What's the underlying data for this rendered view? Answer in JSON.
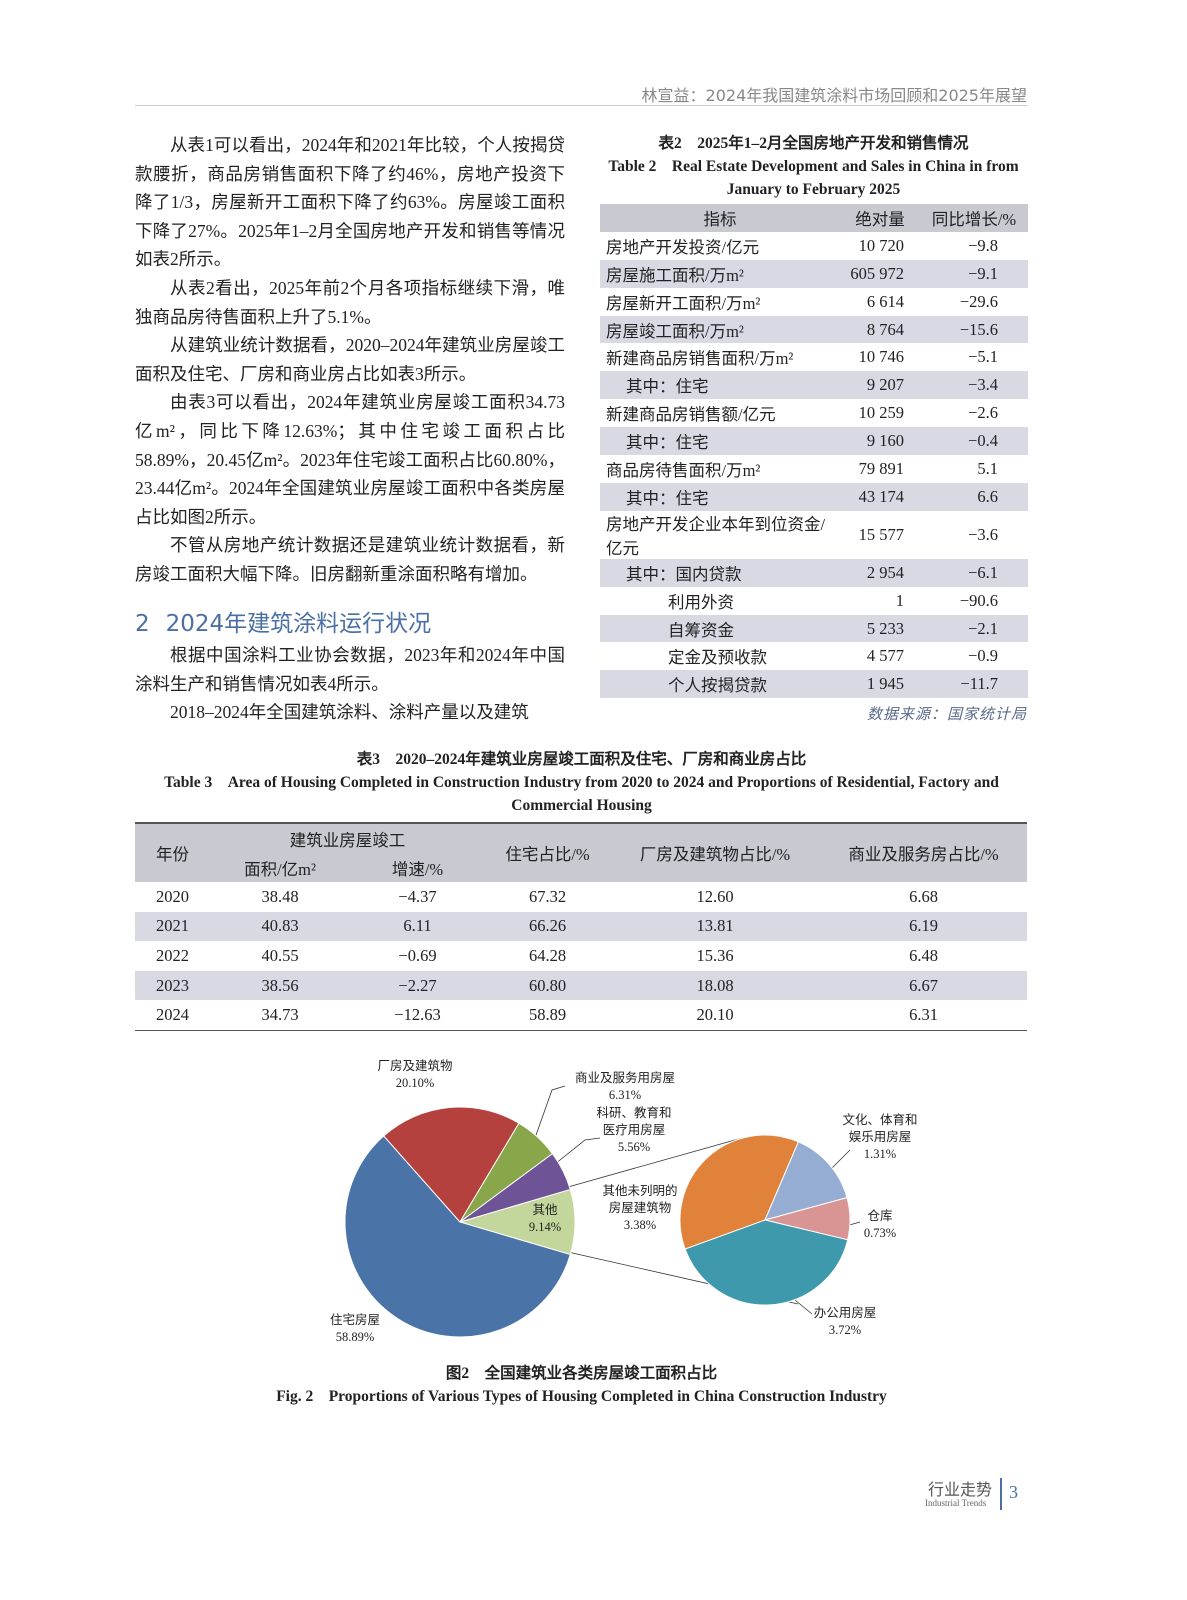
{
  "header": {
    "running_title": "林宣益：2024年我国建筑涂料市场回顾和2025年展望"
  },
  "body": {
    "paragraphs_1": [
      "从表1可以看出，2024年和2021年比较，个人按揭贷款腰折，商品房销售面积下降了约46%，房地产投资下降了1/3，房屋新开工面积下降了约63%。房屋竣工面积下降了27%。2025年1–2月全国房地产开发和销售等情况如表2所示。",
      "从表2看出，2025年前2个月各项指标继续下滑，唯独商品房待售面积上升了5.1%。",
      "从建筑业统计数据看，2020–2024年建筑业房屋竣工面积及住宅、厂房和商业房占比如表3所示。",
      "由表3可以看出，2024年建筑业房屋竣工面积34.73亿m²，同比下降12.63%；其中住宅竣工面积占比58.89%，20.45亿m²。2023年住宅竣工面积占比60.80%，23.44亿m²。2024年全国建筑业房屋竣工面积中各类房屋占比如图2所示。",
      "不管从房地产统计数据还是建筑业统计数据看，新房竣工面积大幅下降。旧房翻新重涂面积略有增加。"
    ],
    "section": {
      "number": "2",
      "title": "2024年建筑涂料运行状况"
    },
    "paragraphs_2": [
      "根据中国涂料工业协会数据，2023年和2024年中国涂料生产和销售情况如表4所示。",
      "2018–2024年全国建筑涂料、涂料产量以及建筑"
    ]
  },
  "table2": {
    "caption": "表2　2025年1–2月全国房地产开发和销售情况",
    "caption_en": "Table 2　Real Estate Development and Sales in China in from January to February 2025",
    "header": [
      "指标",
      "绝对量",
      "同比增长/%"
    ],
    "rows": [
      [
        "房地产开发投资/亿元",
        "10 720",
        "−9.8"
      ],
      [
        "房屋施工面积/万m²",
        "605 972",
        "−9.1"
      ],
      [
        "房屋新开工面积/万m²",
        "6 614",
        "−29.6"
      ],
      [
        "房屋竣工面积/万m²",
        "8 764",
        "−15.6"
      ],
      [
        "新建商品房销售面积/万m²",
        "10 746",
        "−5.1"
      ],
      [
        "其中：住宅",
        "9 207",
        "−3.4"
      ],
      [
        "新建商品房销售额/亿元",
        "10 259",
        "−2.6"
      ],
      [
        "其中：住宅",
        "9 160",
        "−0.4"
      ],
      [
        "商品房待售面积/万m²",
        "79 891",
        "5.1"
      ],
      [
        "其中：住宅",
        "43 174",
        "6.6"
      ],
      [
        "房地产开发企业本年到位资金/亿元",
        "15 577",
        "−3.6"
      ],
      [
        "其中：国内贷款",
        "2 954",
        "−6.1"
      ],
      [
        "利用外资",
        "1",
        "−90.6"
      ],
      [
        "自筹资金",
        "5 233",
        "−2.1"
      ],
      [
        "定金及预收款",
        "4 577",
        "−0.9"
      ],
      [
        "个人按揭贷款",
        "1 945",
        "−11.7"
      ]
    ],
    "source": "数据来源：国家统计局"
  },
  "table3": {
    "caption": "表3　2020–2024年建筑业房屋竣工面积及住宅、厂房和商业房占比",
    "caption_en": "Table 3　Area of Housing Completed in Construction Industry from 2020 to 2024 and Proportions of Residential, Factory and Commercial Housing",
    "header": {
      "year": "年份",
      "group": "建筑业房屋竣工",
      "area": "面积/亿m²",
      "growth": "增速/%",
      "residential": "住宅占比/%",
      "factory": "厂房及建筑物占比/%",
      "commercial": "商业及服务房占比/%"
    },
    "rows": [
      [
        "2020",
        "38.48",
        "−4.37",
        "67.32",
        "12.60",
        "6.68"
      ],
      [
        "2021",
        "40.83",
        "6.11",
        "66.26",
        "13.81",
        "6.19"
      ],
      [
        "2022",
        "40.55",
        "−0.69",
        "64.28",
        "15.36",
        "6.48"
      ],
      [
        "2023",
        "38.56",
        "−2.27",
        "60.80",
        "18.08",
        "6.67"
      ],
      [
        "2024",
        "34.73",
        "−12.63",
        "58.89",
        "20.10",
        "6.31"
      ]
    ]
  },
  "chart_data": {
    "type": "pie",
    "categories": [
      "住宅房屋",
      "厂房及建筑物",
      "商业及服务用房屋",
      "科研、教育和医疗用房屋",
      "其他"
    ],
    "values": [
      58.89,
      20.1,
      6.31,
      5.56,
      9.14
    ],
    "value_labels": [
      "58.89%",
      "20.10%",
      "6.31%",
      "5.56%",
      "9.14%"
    ],
    "colors": [
      "#4a74a8",
      "#b5413e",
      "#8aa64a",
      "#6e5496",
      "#c3d69b"
    ],
    "detail": {
      "categories": [
        "其他未列明的房屋建筑物",
        "文化、体育和娱乐用房屋",
        "仓库",
        "办公用房屋"
      ],
      "values": [
        3.38,
        1.31,
        0.73,
        3.72
      ],
      "value_labels": [
        "3.38%",
        "1.31%",
        "0.73%",
        "3.72%"
      ],
      "colors": [
        "#e0823a",
        "#95acd3",
        "#d99594",
        "#3f99ad"
      ]
    }
  },
  "figure": {
    "caption": "图2　全国建筑业各类房屋竣工面积占比",
    "caption_en": "Fig. 2　Proportions of Various Types of Housing Completed in China Construction Industry"
  },
  "footer": {
    "section": "行业走势",
    "section_en": "Industrial Trends",
    "page": "3"
  }
}
